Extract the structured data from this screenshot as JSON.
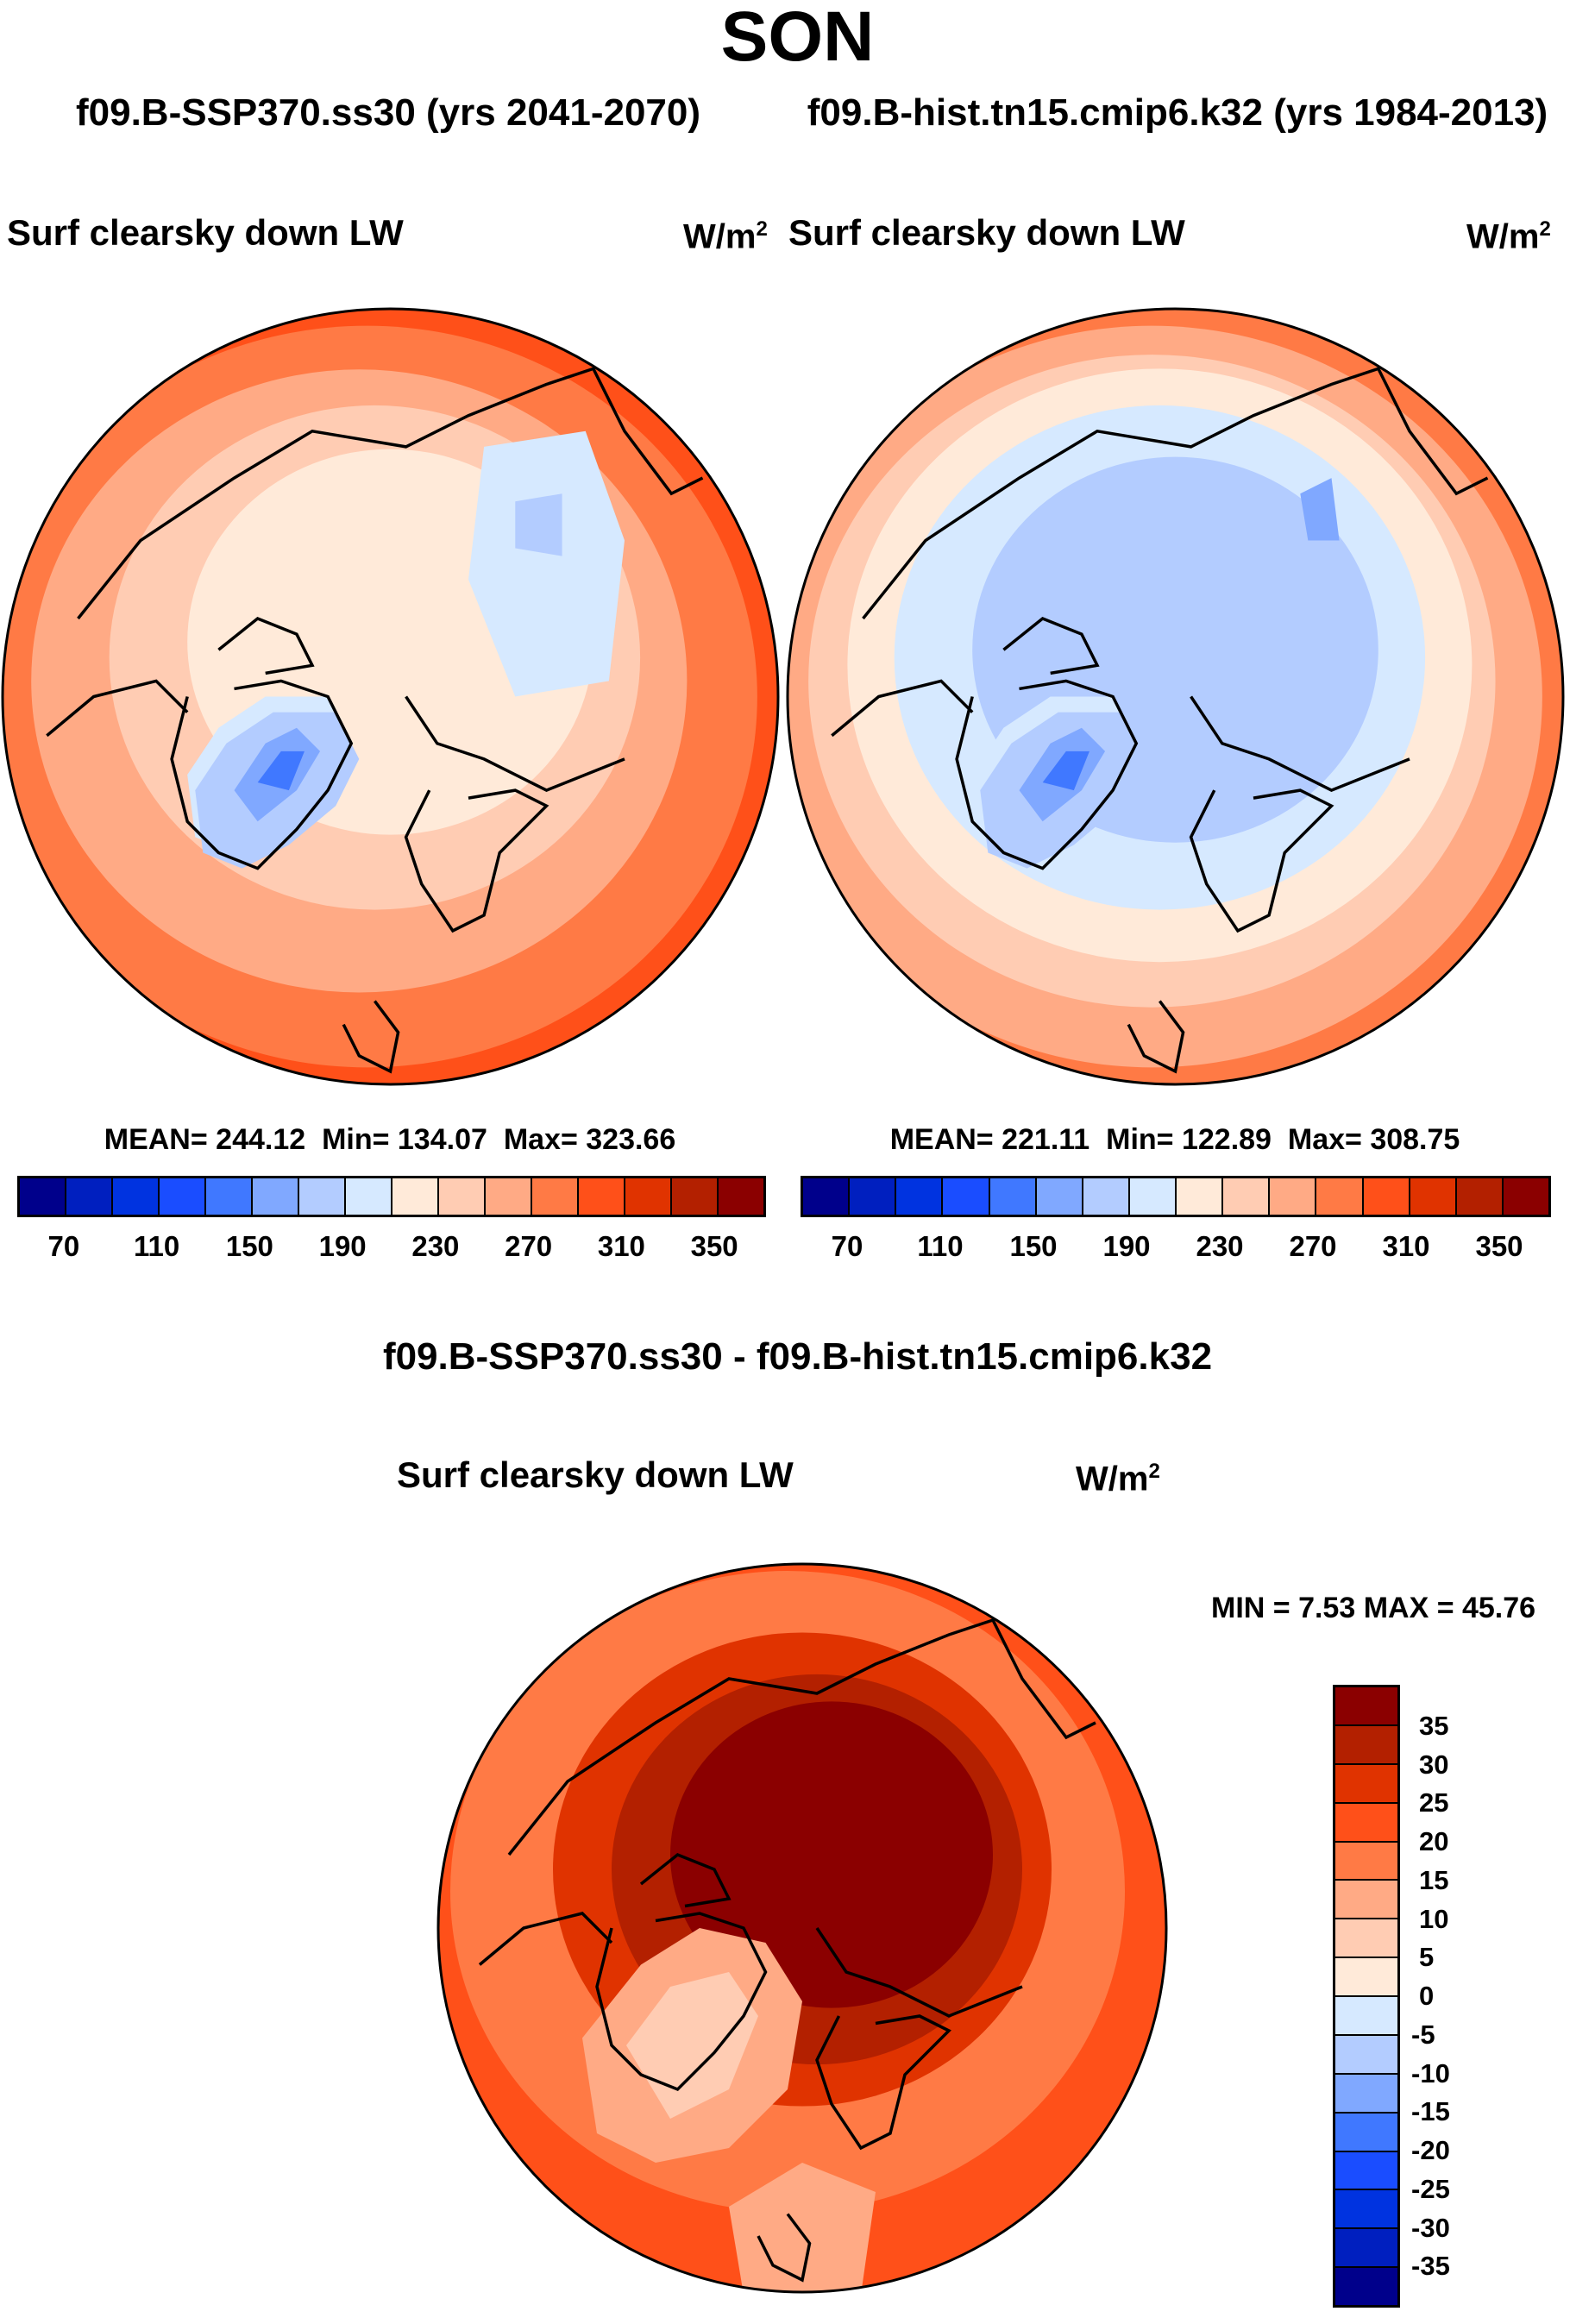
{
  "title": "SON",
  "subtitle_left": "f09.B-SSP370.ss30 (yrs 2041-2070)",
  "subtitle_right": "f09.B-hist.tn15.cmip6.k32 (yrs 1984-2013)",
  "diff_title": "f09.B-SSP370.ss30 - f09.B-hist.tn15.cmip6.k32",
  "colors": [
    "#00008b",
    "#001fbf",
    "#0033e0",
    "#1a4dff",
    "#4078ff",
    "#80a8ff",
    "#b3ccff",
    "#d6e9ff",
    "#ffead9",
    "#ffccb3",
    "#ffaa85",
    "#ff7a45",
    "#ff5019",
    "#e03300",
    "#b32000",
    "#8b0000"
  ],
  "chart_data": [
    {
      "type": "heatmap",
      "title": "Surf clearsky down LW",
      "units_base": "W/m",
      "units_exp": "2",
      "projection": "north-polar-stereographic",
      "stats": {
        "mean_label": "MEAN= 244.12",
        "min_label": "Min= 134.07",
        "max_label": "Max= 323.66",
        "mean": 244.12,
        "min": 134.07,
        "max": 323.66
      },
      "tick_labels": [
        "70",
        "110",
        "150",
        "190",
        "230",
        "270",
        "310",
        "350"
      ],
      "levels": [
        70,
        90,
        110,
        130,
        150,
        170,
        190,
        210,
        230,
        250,
        270,
        290,
        310,
        330,
        350
      ]
    },
    {
      "type": "heatmap",
      "title": "Surf clearsky down LW",
      "units_base": "W/m",
      "units_exp": "2",
      "projection": "north-polar-stereographic",
      "stats": {
        "mean_label": "MEAN= 221.11",
        "min_label": "Min= 122.89",
        "max_label": "Max= 308.75",
        "mean": 221.11,
        "min": 122.89,
        "max": 308.75
      },
      "tick_labels": [
        "70",
        "110",
        "150",
        "190",
        "230",
        "270",
        "310",
        "350"
      ],
      "levels": [
        70,
        90,
        110,
        130,
        150,
        170,
        190,
        210,
        230,
        250,
        270,
        290,
        310,
        330,
        350
      ]
    },
    {
      "type": "heatmap",
      "title": "Surf clearsky down LW",
      "units_base": "W/m",
      "units_exp": "2",
      "projection": "north-polar-stereographic",
      "stats": {
        "minmax_label": "MIN =   7.53 MAX =  45.76",
        "min": 7.53,
        "max": 45.76
      },
      "tick_labels": [
        "35",
        "30",
        "25",
        "20",
        "15",
        "10",
        "5",
        "0",
        "-5",
        "-10",
        "-15",
        "-20",
        "-25",
        "-30",
        "-35"
      ],
      "levels": [
        -35,
        -30,
        -25,
        -20,
        -15,
        -10,
        -5,
        0,
        5,
        10,
        15,
        20,
        25,
        30,
        35
      ]
    }
  ]
}
